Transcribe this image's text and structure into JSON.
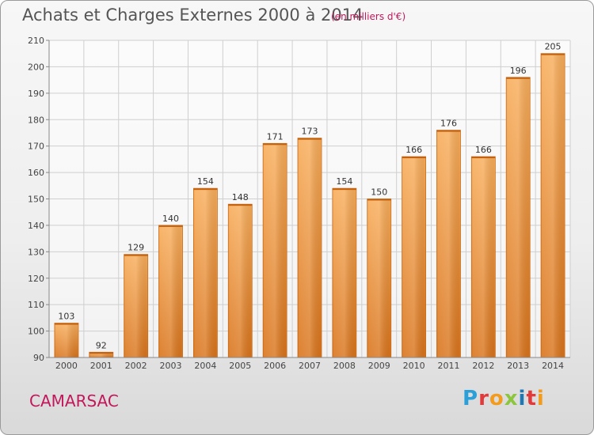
{
  "header": {
    "title": "Achats et Charges Externes 2000 à 2014",
    "subtitle": "(en milliers d'€)"
  },
  "footer": {
    "city": "CAMARSAC",
    "brand": "Proxiti",
    "brand_colors": [
      "#2a9fd8",
      "#e03a3a",
      "#f29b1d",
      "#8cc63f",
      "#1f78b4",
      "#e03a3a",
      "#f29b1d"
    ]
  },
  "colors": {
    "bar_light": "#f6a54c",
    "bar_dark": "#e07a1e",
    "grid": "#cfcfcf",
    "axis_text": "#444444"
  },
  "chart_data": {
    "type": "bar",
    "categories": [
      "2000",
      "2001",
      "2002",
      "2003",
      "2004",
      "2005",
      "2006",
      "2007",
      "2008",
      "2009",
      "2010",
      "2011",
      "2012",
      "2013",
      "2014"
    ],
    "values": [
      103,
      92,
      129,
      140,
      154,
      148,
      171,
      173,
      154,
      150,
      166,
      176,
      166,
      196,
      205
    ],
    "ylim": [
      90,
      210
    ],
    "yticks": [
      90,
      100,
      110,
      120,
      130,
      140,
      150,
      160,
      170,
      180,
      190,
      200,
      210
    ],
    "grid": true,
    "data_labels": true
  }
}
